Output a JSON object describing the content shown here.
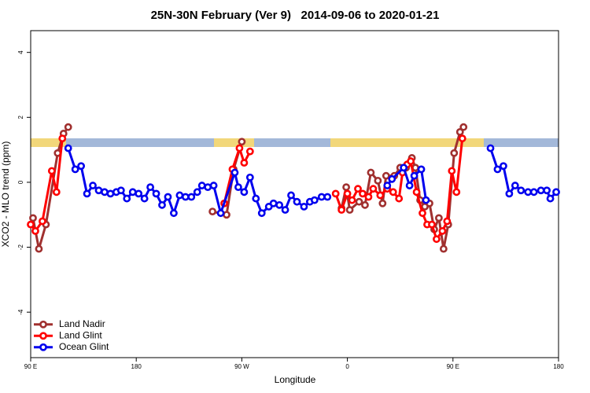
{
  "chart_data": {
    "type": "line",
    "title": "25N-30N February (Ver 9)   2014-09-06 to 2020-01-21",
    "x_label": "Longitude",
    "y_label": "XCO2 - MLO trend (ppm)",
    "xlim": [
      90,
      540
    ],
    "xticks": [
      {
        "value": 90,
        "label": "90 E"
      },
      180,
      {
        "value": 270,
        "label": "90 W"
      },
      {
        "value": 360,
        "label": "0"
      },
      {
        "value": 450,
        "label": "90 E"
      },
      180
    ],
    "ylim": [
      -5.4,
      4.67
    ],
    "yticks": [
      -4,
      -2,
      0,
      2,
      4
    ],
    "legend": "bottomleft",
    "series": [
      {
        "name": "Land Nadir",
        "color": "#a0302f",
        "x": [
          92,
          97,
          103,
          113,
          118,
          122,
          null,
          245,
          257,
          263,
          270,
          null,
          355,
          359,
          362,
          370,
          375,
          380,
          386,
          390,
          393,
          400,
          405,
          410,
          415,
          418,
          422,
          426,
          430,
          434,
          438,
          442,
          446,
          451,
          456,
          459
        ],
        "values": [
          -1.1,
          -2.05,
          -1.3,
          0.9,
          1.5,
          1.7,
          null,
          -0.9,
          -1.0,
          0.4,
          1.25,
          null,
          -0.8,
          -0.15,
          -0.85,
          -0.6,
          -0.7,
          0.3,
          0.05,
          -0.65,
          0.2,
          0.2,
          0.45,
          0.45,
          0.75,
          0.45,
          -0.55,
          -0.75,
          -0.65,
          -1.45,
          -1.1,
          -2.05,
          -1.3,
          0.9,
          1.55,
          1.7
        ]
      },
      {
        "name": "Land Glint",
        "color": "#ff0000",
        "x": [
          90,
          94,
          100,
          108,
          112,
          117,
          null,
          255,
          262,
          268,
          272,
          277,
          null,
          350,
          355,
          360,
          364,
          369,
          373,
          378,
          382,
          388,
          394,
          399,
          404,
          407,
          411,
          414,
          419,
          424,
          428,
          432,
          436,
          441,
          445,
          449,
          453,
          458
        ],
        "values": [
          -1.3,
          -1.5,
          -1.2,
          0.35,
          -0.3,
          1.35,
          null,
          -0.65,
          0.4,
          1.05,
          0.6,
          0.95,
          null,
          -0.35,
          -0.85,
          -0.35,
          -0.55,
          -0.2,
          -0.35,
          -0.45,
          -0.2,
          -0.4,
          -0.2,
          -0.3,
          -0.5,
          0.3,
          0.55,
          0.65,
          -0.3,
          -0.95,
          -1.3,
          -1.3,
          -1.75,
          -1.5,
          -1.2,
          0.35,
          -0.3,
          1.35
        ]
      },
      {
        "name": "Ocean Glint",
        "color": "#0000ee",
        "x": [
          122,
          128,
          133,
          138,
          143,
          148,
          153,
          158,
          163,
          167,
          172,
          177,
          182,
          187,
          192,
          197,
          202,
          207,
          212,
          217,
          222,
          227,
          232,
          236,
          241,
          246,
          252,
          264,
          267,
          272,
          277,
          282,
          287,
          293,
          297,
          302,
          307,
          312,
          317,
          323,
          328,
          332,
          338,
          343,
          null,
          394,
          398,
          408,
          413,
          417,
          423,
          427,
          null,
          482,
          488,
          493,
          498,
          503,
          508,
          514,
          519,
          525,
          530,
          533,
          538
        ],
        "values": [
          1.05,
          0.4,
          0.5,
          -0.35,
          -0.1,
          -0.25,
          -0.3,
          -0.35,
          -0.3,
          -0.25,
          -0.5,
          -0.3,
          -0.35,
          -0.5,
          -0.15,
          -0.35,
          -0.7,
          -0.45,
          -0.95,
          -0.4,
          -0.45,
          -0.45,
          -0.3,
          -0.1,
          -0.15,
          -0.1,
          -0.95,
          0.3,
          -0.15,
          -0.3,
          0.15,
          -0.5,
          -0.95,
          -0.75,
          -0.65,
          -0.7,
          -0.85,
          -0.4,
          -0.6,
          -0.75,
          -0.6,
          -0.55,
          -0.45,
          -0.45,
          null,
          -0.1,
          0.1,
          0.45,
          -0.1,
          0.2,
          0.4,
          -0.55,
          null,
          1.05,
          0.4,
          0.5,
          -0.35,
          -0.1,
          -0.25,
          -0.3,
          -0.3,
          -0.25,
          -0.25,
          -0.5,
          -0.3
        ]
      }
    ]
  }
}
